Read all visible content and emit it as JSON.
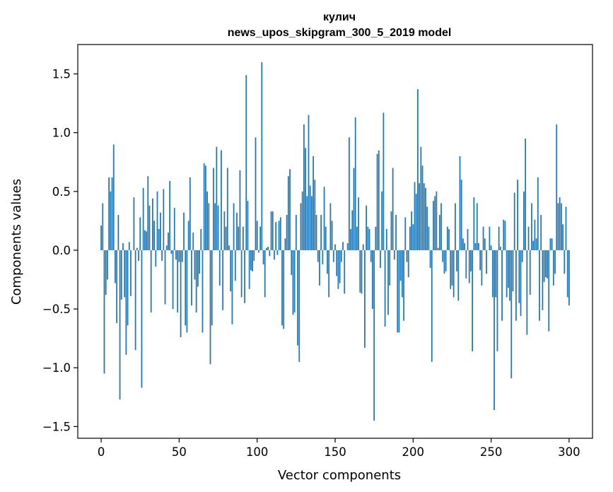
{
  "chart_data": {
    "type": "bar",
    "title": "кулич",
    "subtitle": "news_upos_skipgram_300_5_2019 model",
    "xlabel": "Vector components",
    "ylabel": "Components values",
    "xlim": [
      -15,
      315
    ],
    "ylim": [
      -1.6,
      1.75
    ],
    "xticks": [
      0,
      50,
      100,
      150,
      200,
      250,
      300
    ],
    "yticks": [
      -1.5,
      -1.0,
      -0.5,
      0.0,
      0.5,
      1.0,
      1.5
    ],
    "ytick_labels": [
      "−1.5",
      "−1.0",
      "−0.5",
      "0.0",
      "0.5",
      "1.0",
      "1.5"
    ],
    "bar_color": "#1f77b4",
    "x_start": 0,
    "values": [
      0.21,
      0.4,
      -1.05,
      -0.38,
      -0.25,
      0.62,
      0.5,
      0.62,
      0.9,
      -0.28,
      -0.62,
      0.3,
      -1.27,
      -0.42,
      0.06,
      -0.4,
      -0.89,
      -0.64,
      0.07,
      -0.39,
      0.0,
      0.45,
      -0.85,
      0.02,
      -0.09,
      0.28,
      -1.17,
      0.53,
      0.17,
      0.16,
      0.63,
      0.38,
      -0.53,
      0.44,
      0.25,
      -0.14,
      0.5,
      0.18,
      0.32,
      -0.09,
      0.52,
      -0.46,
      0.04,
      0.15,
      0.59,
      -0.03,
      -0.5,
      0.36,
      -0.08,
      -0.53,
      -0.1,
      -0.74,
      -0.1,
      0.32,
      -0.64,
      -0.7,
      0.25,
      0.62,
      -0.47,
      0.15,
      -0.25,
      -0.53,
      -0.31,
      -0.2,
      0.18,
      -0.7,
      0.74,
      0.72,
      0.5,
      0.4,
      -0.97,
      -0.64,
      0.7,
      0.4,
      0.88,
      0.38,
      -0.3,
      0.85,
      -0.51,
      0.33,
      0.2,
      0.7,
      0.04,
      -0.35,
      -0.63,
      0.4,
      -0.26,
      0.32,
      0.2,
      0.68,
      -0.4,
      0.2,
      -0.45,
      1.49,
      0.42,
      -0.33,
      -0.17,
      -0.18,
      -0.09,
      0.96,
      0.25,
      -0.02,
      0.2,
      1.6,
      -0.12,
      -0.4,
      0.02,
      0.03,
      -0.05,
      0.33,
      0.33,
      -0.08,
      0.24,
      -0.04,
      0.25,
      0.28,
      -0.64,
      -0.67,
      0.1,
      0.3,
      0.63,
      0.69,
      -0.21,
      -0.55,
      -0.53,
      0.3,
      -0.81,
      -0.95,
      0.4,
      0.5,
      1.07,
      0.87,
      0.46,
      1.15,
      0.55,
      0.46,
      0.8,
      0.6,
      0.3,
      -0.1,
      -0.3,
      0.3,
      -0.12,
      0.54,
      0.2,
      -0.2,
      -0.4,
      0.4,
      0.25,
      -0.1,
      0.05,
      -0.22,
      -0.33,
      -0.28,
      -0.1,
      0.07,
      -0.37,
      0.0,
      0.06,
      0.96,
      0.18,
      0.34,
      0.7,
      1.13,
      0.2,
      0.45,
      -0.36,
      -0.37,
      0.05,
      -0.83,
      0.38,
      0.2,
      0.18,
      -0.1,
      -0.5,
      -1.45,
      0.2,
      0.82,
      0.85,
      -0.15,
      0.5,
      1.17,
      -0.65,
      0.18,
      -0.55,
      -0.3,
      0.33,
      0.7,
      -0.08,
      0.3,
      -0.7,
      -0.7,
      -0.26,
      -0.4,
      -0.6,
      0.28,
      -0.1,
      -0.23,
      0.2,
      0.33,
      0.22,
      0.58,
      0.48,
      1.37,
      0.57,
      0.88,
      0.72,
      0.57,
      0.53,
      0.37,
      0.2,
      -0.15,
      -0.95,
      0.42,
      0.46,
      0.5,
      0.02,
      0.3,
      0.4,
      -0.1,
      -0.2,
      -0.18,
      0.2,
      0.18,
      -0.33,
      -0.3,
      -0.4,
      0.4,
      -0.18,
      -0.43,
      0.8,
      0.6,
      0.1,
      0.06,
      -0.24,
      0.18,
      -0.28,
      -0.18,
      -0.86,
      0.45,
      0.06,
      0.4,
      0.06,
      -0.17,
      -0.3,
      0.2,
      0.1,
      -0.2,
      0.0,
      0.2,
      0.04,
      -0.4,
      -1.36,
      -0.4,
      -0.86,
      0.2,
      0.03,
      -0.6,
      0.26,
      0.25,
      -0.4,
      -0.32,
      -0.43,
      -1.09,
      -0.35,
      0.49,
      -0.6,
      0.6,
      -0.45,
      -0.56,
      -0.1,
      0.5,
      0.95,
      -0.72,
      0.2,
      -0.38,
      0.4,
      0.08,
      0.26,
      0.1,
      0.62,
      -0.6,
      0.3,
      -0.51,
      -0.27,
      -0.23,
      -0.24,
      -0.69,
      0.1,
      0.1,
      -0.3,
      -0.2,
      1.07,
      0.4,
      0.45,
      0.4,
      0.22,
      -0.2,
      0.37,
      -0.4,
      -0.47,
      0.0
    ]
  }
}
